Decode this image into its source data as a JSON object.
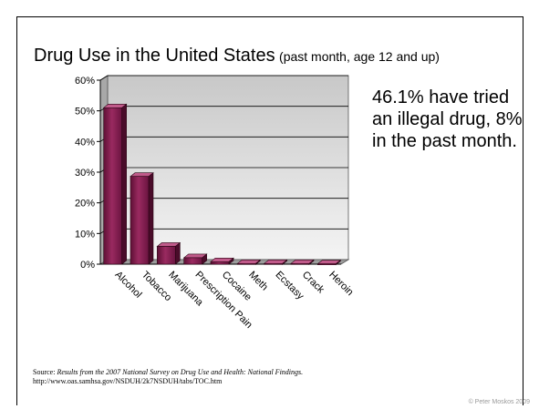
{
  "slide": {
    "title_main": "Drug Use in the United States",
    "title_sub": "(past month, age 12 and up)",
    "note": "46.1% have tried an illegal drug, 8% in the past month.",
    "source_prefix": "Source: ",
    "source_title": "Results from the 2007 National Survey on Drug Use and Health: National Findings.",
    "source_url": "http://www.oas.samhsa.gov/NSDUH/2k7NSDUH/tabs/TOC.htm",
    "copyright": "© Peter Moskos 2009"
  },
  "chart_data": {
    "type": "bar",
    "title": "Drug Use in the United States",
    "subtitle": "(past month, age 12 and up)",
    "categories": [
      "Alcohol",
      "Tobacco",
      "Marijuana",
      "Prescription Pain",
      "Cocaine",
      "Meth",
      "Ecstasy",
      "Crack",
      "Heroin"
    ],
    "values": [
      51,
      28.6,
      5.8,
      2.1,
      0.8,
      0.2,
      0.2,
      0.2,
      0.1
    ],
    "yticks": [
      "0%",
      "10%",
      "20%",
      "30%",
      "40%",
      "50%",
      "60%"
    ],
    "ylim": [
      0,
      60
    ],
    "grid": true,
    "bar_color": "#8b1e52",
    "plot_bg": "#d4d4d4"
  }
}
